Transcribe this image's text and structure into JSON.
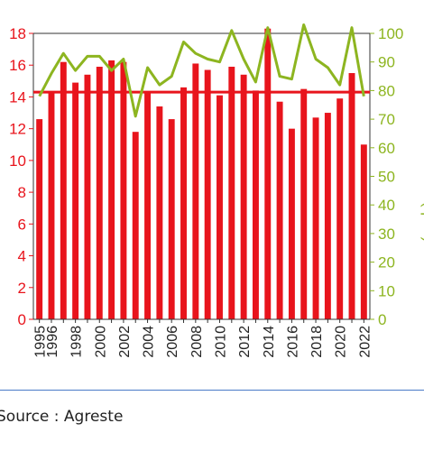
{
  "chart_data": {
    "type": "bar",
    "title": "",
    "x": [
      1995,
      1996,
      1997,
      1998,
      1999,
      2000,
      2001,
      2002,
      2003,
      2004,
      2005,
      2006,
      2007,
      2008,
      2009,
      2010,
      2011,
      2012,
      2013,
      2014,
      2015,
      2016,
      2017,
      2018,
      2019,
      2020,
      2021,
      2022
    ],
    "x_tick_labels": [
      "1995",
      "1996",
      "1998",
      "2000",
      "2002",
      "2004",
      "2006",
      "2008",
      "2010",
      "2012",
      "2014",
      "2016",
      "2018",
      "2020",
      "2022"
    ],
    "series": [
      {
        "axis": "left",
        "type": "bar",
        "color": "#e8141c",
        "values": [
          12.6,
          14.3,
          16.2,
          14.9,
          15.4,
          15.9,
          16.3,
          16.2,
          11.8,
          14.3,
          13.4,
          12.6,
          14.6,
          16.1,
          15.7,
          14.1,
          15.9,
          15.4,
          14.4,
          18.3,
          13.7,
          12.0,
          14.5,
          12.7,
          13.0,
          13.9,
          15.5,
          11.0
        ]
      },
      {
        "axis": "left",
        "type": "hline",
        "color": "#e8141c",
        "value": 14.3
      },
      {
        "axis": "right",
        "type": "line",
        "color": "#8db520",
        "values": [
          78,
          86,
          93,
          87,
          92,
          92,
          87,
          91,
          71,
          88,
          82,
          85,
          97,
          93,
          91,
          90,
          101,
          91,
          83,
          102,
          85,
          84,
          103,
          91,
          88,
          82,
          102,
          78
        ]
      }
    ],
    "y_left": {
      "ylim": [
        0,
        18
      ],
      "ticks": [
        0,
        2,
        4,
        6,
        8,
        10,
        12,
        14,
        16,
        18
      ],
      "color": "#e8141c",
      "label": ""
    },
    "y_right": {
      "ylim": [
        0,
        100
      ],
      "ticks": [
        0,
        10,
        20,
        30,
        40,
        50,
        60,
        70,
        80,
        90,
        100
      ],
      "color": "#8db520",
      "label": "Rendements (q/ha)"
    },
    "grid": false,
    "legend": "none"
  },
  "footer": {
    "source": "Source : Agreste"
  }
}
